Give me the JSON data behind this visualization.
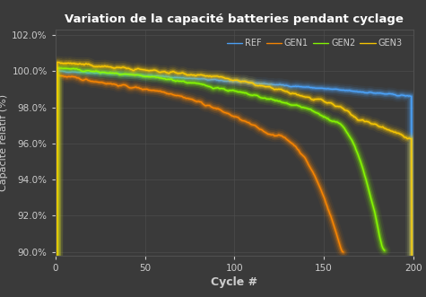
{
  "title": "Variation de la capacité batteries pendant cyclage",
  "xlabel": "Cycle #",
  "ylabel": "Capacité relatif (%)",
  "background_color": "#3a3a3a",
  "text_color": "#cccccc",
  "grid_color": "#505050",
  "ylim": [
    89.8,
    102.3
  ],
  "xlim": [
    0,
    200
  ],
  "yticks": [
    90.0,
    92.0,
    94.0,
    96.0,
    98.0,
    100.0,
    102.0
  ],
  "xticks": [
    0,
    50,
    100,
    150,
    200
  ],
  "colors": {
    "REF": "#4da6ff",
    "GEN1": "#ff8800",
    "GEN2": "#88ff00",
    "GEN3": "#ffcc00"
  }
}
